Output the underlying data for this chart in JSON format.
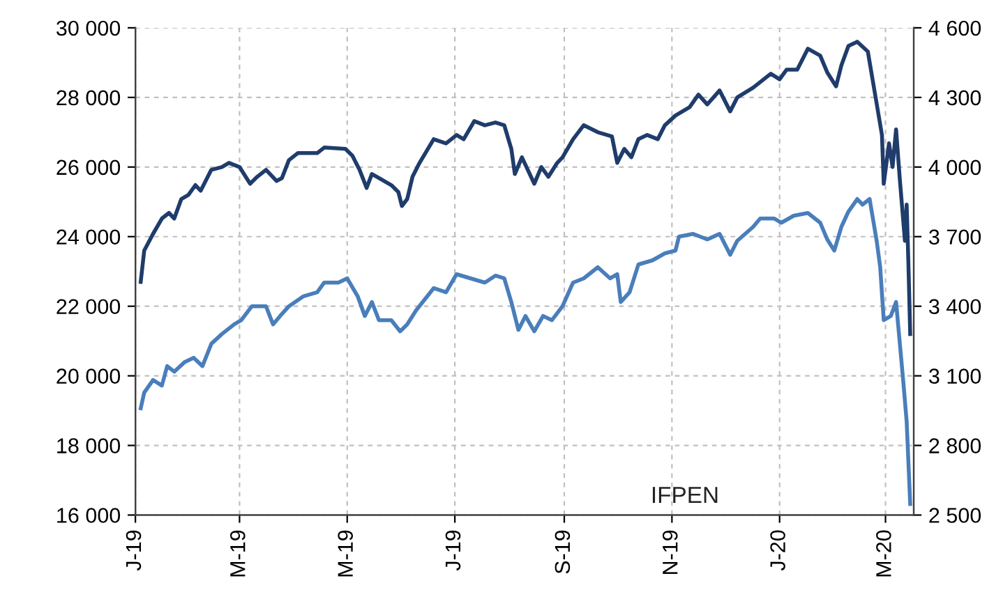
{
  "chart_data": {
    "type": "line",
    "annotations": [
      "IFPEN"
    ],
    "xlim": [
      "2019-01-01",
      "2020-03-17"
    ],
    "xticks": [
      {
        "value": "2019-01-01",
        "label": "J-19"
      },
      {
        "value": "2019-03-01",
        "label": "M-19"
      },
      {
        "value": "2019-05-01",
        "label": "M-19"
      },
      {
        "value": "2019-07-01",
        "label": "J-19"
      },
      {
        "value": "2019-09-01",
        "label": "S-19"
      },
      {
        "value": "2019-11-01",
        "label": "N-19"
      },
      {
        "value": "2020-01-01",
        "label": "J-20"
      },
      {
        "value": "2020-03-01",
        "label": "M-20"
      }
    ],
    "ylim": [
      16000,
      30000
    ],
    "yticks": [
      {
        "value": 16000,
        "label": "16 000"
      },
      {
        "value": 18000,
        "label": "18 000"
      },
      {
        "value": 20000,
        "label": "20 000"
      },
      {
        "value": 22000,
        "label": "22 000"
      },
      {
        "value": 24000,
        "label": "24 000"
      },
      {
        "value": 26000,
        "label": "26 000"
      },
      {
        "value": 28000,
        "label": "28 000"
      },
      {
        "value": 30000,
        "label": "30 000"
      }
    ],
    "y2lim": [
      2500,
      4600
    ],
    "y2ticks": [
      {
        "value": 2500,
        "label": "2 500"
      },
      {
        "value": 2800,
        "label": "2 800"
      },
      {
        "value": 3100,
        "label": "3 100"
      },
      {
        "value": 3400,
        "label": "3 400"
      },
      {
        "value": 3700,
        "label": "3 700"
      },
      {
        "value": 4000,
        "label": "4 000"
      },
      {
        "value": 4300,
        "label": "4 300"
      },
      {
        "value": 4600,
        "label": "4 600"
      }
    ],
    "grid": true,
    "line_style": "solid",
    "marker": "none",
    "series": [
      {
        "color": "#1f3c6b",
        "x": [
          "2019-01-04",
          "2019-01-06",
          "2019-01-11",
          "2019-01-16",
          "2019-01-20",
          "2019-01-23",
          "2019-01-27",
          "2019-01-31",
          "2019-02-04",
          "2019-02-07",
          "2019-02-11",
          "2019-02-13",
          "2019-02-19",
          "2019-02-23",
          "2019-03-01",
          "2019-03-07",
          "2019-03-11",
          "2019-03-16",
          "2019-03-22",
          "2019-03-25",
          "2019-03-29",
          "2019-04-03",
          "2019-04-14",
          "2019-04-18",
          "2019-04-30",
          "2019-05-04",
          "2019-05-08",
          "2019-05-12",
          "2019-05-15",
          "2019-05-26",
          "2019-05-30",
          "2019-06-01",
          "2019-06-04",
          "2019-06-07",
          "2019-06-11",
          "2019-06-19",
          "2019-06-26",
          "2019-07-02",
          "2019-07-06",
          "2019-07-12",
          "2019-07-18",
          "2019-07-24",
          "2019-07-29",
          "2019-08-02",
          "2019-08-04",
          "2019-08-08",
          "2019-08-15",
          "2019-08-19",
          "2019-08-23",
          "2019-08-28",
          "2019-08-31",
          "2019-09-06",
          "2019-09-12",
          "2019-09-20",
          "2019-09-28",
          "2019-10-01",
          "2019-10-05",
          "2019-10-09",
          "2019-10-13",
          "2019-10-18",
          "2019-10-24",
          "2019-10-28",
          "2019-11-03",
          "2019-11-11",
          "2019-11-16",
          "2019-11-21",
          "2019-11-28",
          "2019-12-04",
          "2019-12-08",
          "2019-12-17",
          "2019-12-27",
          "2020-01-01",
          "2020-01-05",
          "2020-01-11",
          "2020-01-17",
          "2020-01-24",
          "2020-01-28",
          "2020-02-02",
          "2020-02-05",
          "2020-02-09",
          "2020-02-14",
          "2020-02-20",
          "2020-02-24",
          "2020-02-28",
          "2020-02-29",
          "2020-03-03",
          "2020-03-05",
          "2020-03-07",
          "2020-03-09",
          "2020-03-12",
          "2020-03-13",
          "2020-03-14",
          "2020-03-15"
        ],
        "values": [
          22700,
          23600,
          24080,
          24520,
          24680,
          24520,
          25080,
          25200,
          25480,
          25320,
          25720,
          25920,
          26000,
          26120,
          26000,
          25520,
          25720,
          25920,
          25600,
          25680,
          26200,
          26400,
          26400,
          26560,
          26520,
          26320,
          25920,
          25400,
          25800,
          25480,
          25280,
          24880,
          25080,
          25720,
          26120,
          26800,
          26680,
          26920,
          26800,
          27320,
          27200,
          27280,
          27200,
          26520,
          25800,
          26280,
          25520,
          26000,
          25720,
          26120,
          26280,
          26800,
          27200,
          27000,
          26880,
          26120,
          26520,
          26280,
          26800,
          26920,
          26800,
          27200,
          27480,
          27720,
          28080,
          27800,
          28200,
          27600,
          28000,
          28280,
          28680,
          28520,
          28800,
          28800,
          29400,
          29200,
          28720,
          28320,
          28920,
          29480,
          29600,
          29320,
          28120,
          26920,
          25520,
          26680,
          26000,
          27080,
          25720,
          23880,
          24920,
          23200,
          21200
        ]
      },
      {
        "color": "#4a7ebb",
        "axis": "y2",
        "x": [
          "2019-01-04",
          "2019-01-06",
          "2019-01-11",
          "2019-01-16",
          "2019-01-19",
          "2019-01-23",
          "2019-01-29",
          "2019-02-03",
          "2019-02-08",
          "2019-02-13",
          "2019-02-19",
          "2019-02-26",
          "2019-03-02",
          "2019-03-08",
          "2019-03-16",
          "2019-03-20",
          "2019-03-24",
          "2019-03-29",
          "2019-04-06",
          "2019-04-14",
          "2019-04-18",
          "2019-04-26",
          "2019-05-01",
          "2019-05-07",
          "2019-05-11",
          "2019-05-15",
          "2019-05-19",
          "2019-05-26",
          "2019-05-31",
          "2019-06-04",
          "2019-06-09",
          "2019-06-19",
          "2019-06-26",
          "2019-07-02",
          "2019-07-10",
          "2019-07-18",
          "2019-07-24",
          "2019-07-29",
          "2019-08-02",
          "2019-08-06",
          "2019-08-10",
          "2019-08-15",
          "2019-08-20",
          "2019-08-25",
          "2019-08-31",
          "2019-09-06",
          "2019-09-12",
          "2019-09-20",
          "2019-09-27",
          "2019-10-01",
          "2019-10-03",
          "2019-10-08",
          "2019-10-13",
          "2019-10-21",
          "2019-10-28",
          "2019-11-03",
          "2019-11-05",
          "2019-11-13",
          "2019-11-21",
          "2019-11-28",
          "2019-12-04",
          "2019-12-08",
          "2019-12-17",
          "2019-12-21",
          "2019-12-29",
          "2020-01-02",
          "2020-01-09",
          "2020-01-17",
          "2020-01-24",
          "2020-01-28",
          "2020-02-01",
          "2020-02-05",
          "2020-02-09",
          "2020-02-14",
          "2020-02-17",
          "2020-02-21",
          "2020-02-25",
          "2020-02-27",
          "2020-02-29",
          "2020-03-04",
          "2020-03-07",
          "2020-03-11",
          "2020-03-13",
          "2020-03-15"
        ],
        "values": [
          2960,
          3028,
          3082,
          3058,
          3142,
          3118,
          3160,
          3178,
          3142,
          3238,
          3280,
          3322,
          3340,
          3400,
          3400,
          3322,
          3358,
          3400,
          3442,
          3460,
          3502,
          3502,
          3520,
          3442,
          3358,
          3418,
          3340,
          3340,
          3292,
          3322,
          3382,
          3478,
          3460,
          3538,
          3520,
          3502,
          3532,
          3520,
          3418,
          3298,
          3358,
          3292,
          3358,
          3340,
          3400,
          3502,
          3520,
          3568,
          3520,
          3538,
          3418,
          3460,
          3580,
          3598,
          3628,
          3640,
          3700,
          3712,
          3688,
          3712,
          3622,
          3682,
          3742,
          3778,
          3778,
          3760,
          3790,
          3802,
          3760,
          3688,
          3640,
          3742,
          3808,
          3862,
          3838,
          3862,
          3682,
          3568,
          3340,
          3358,
          3418,
          3082,
          2902,
          2548
        ]
      }
    ]
  }
}
